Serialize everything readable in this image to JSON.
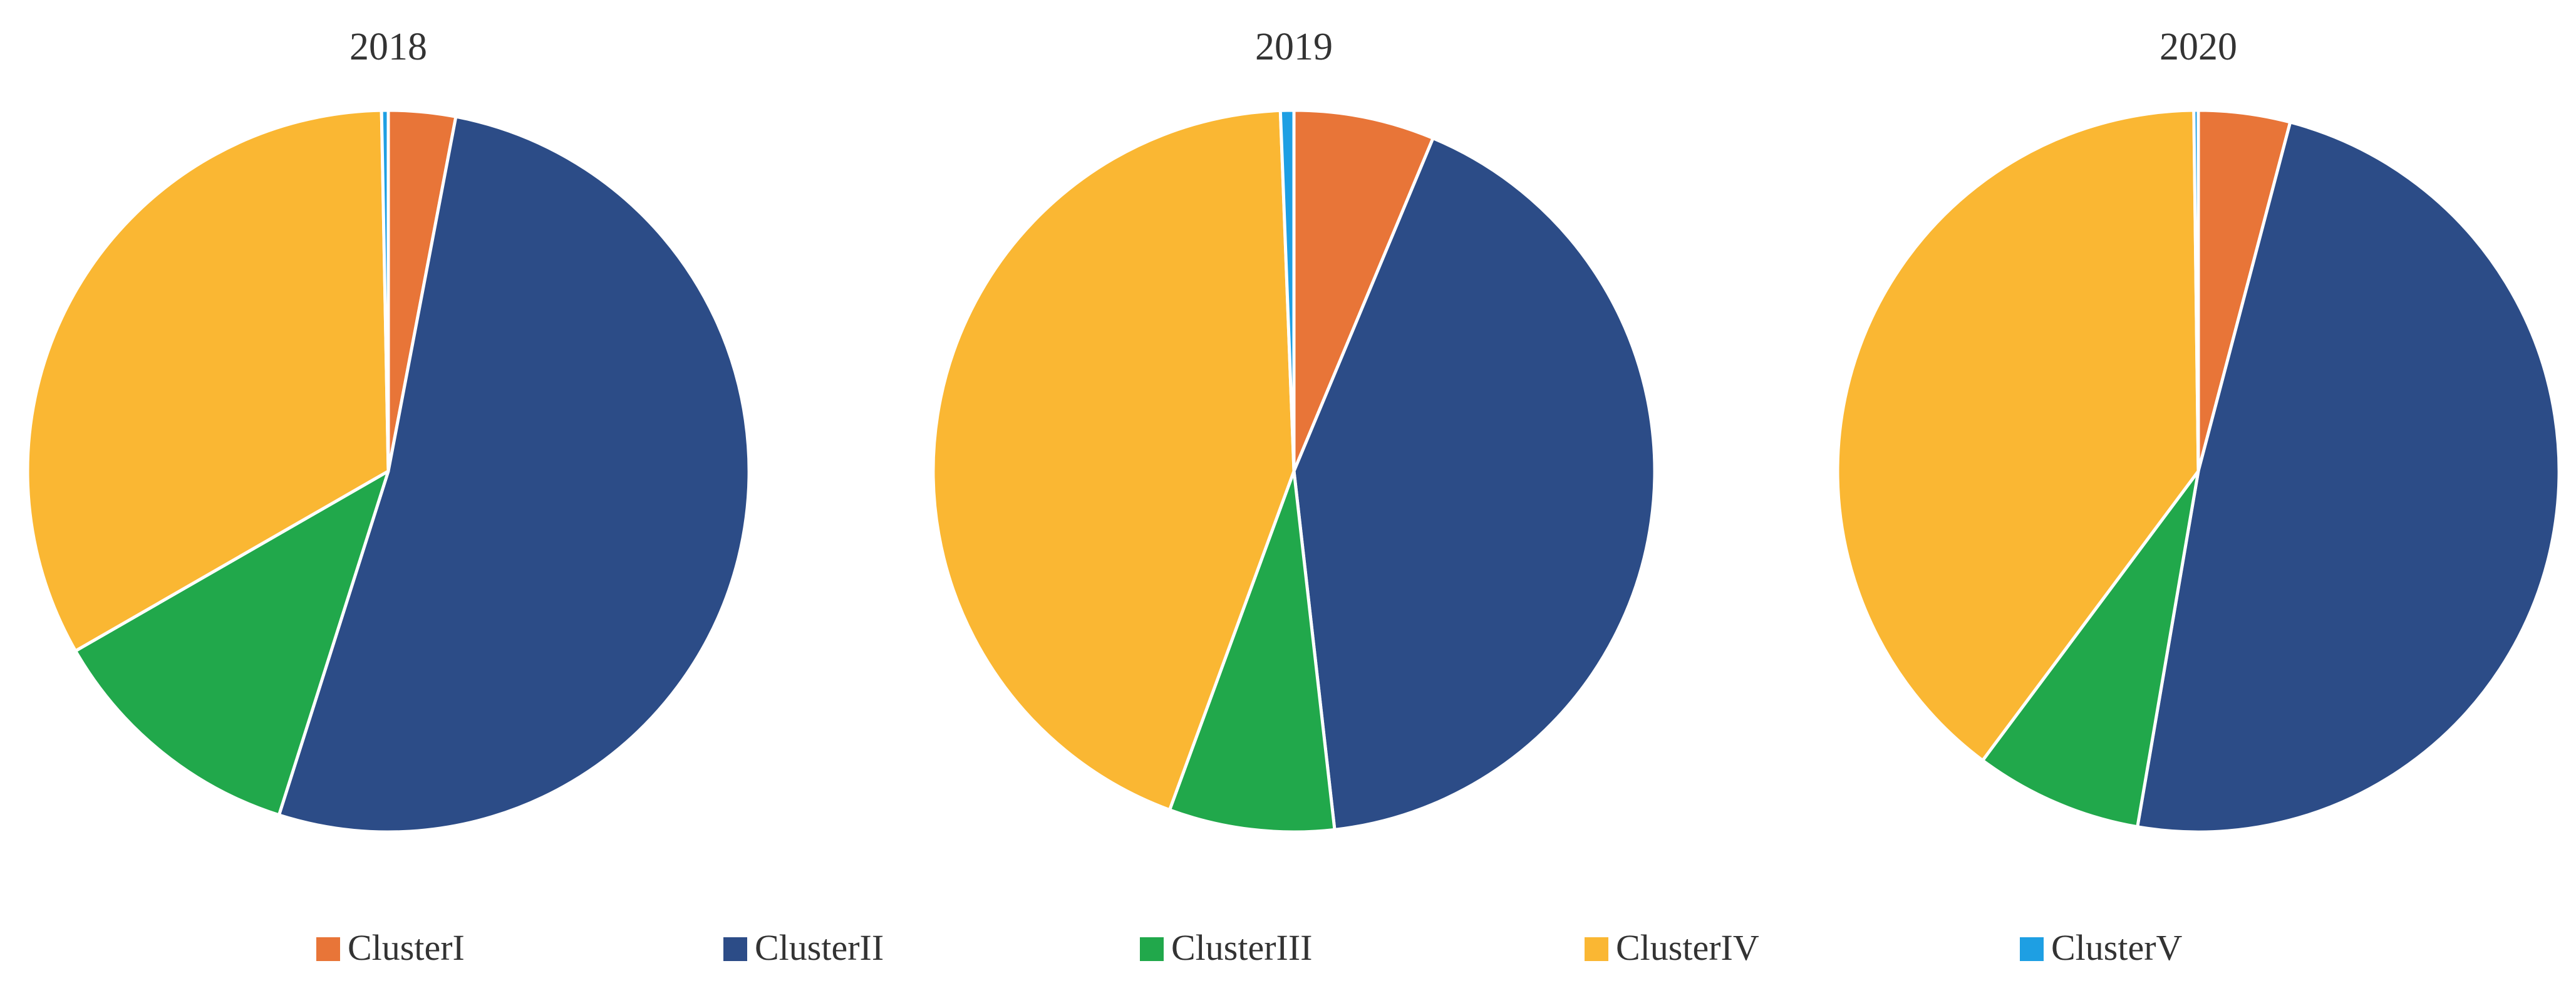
{
  "colors": {
    "ClusterI": "#E87538",
    "ClusterII": "#2C4C87",
    "ClusterIII": "#21A84B",
    "ClusterIV": "#FAB733",
    "ClusterV": "#1E9FE3",
    "slice_border": "#ffffff"
  },
  "legend": {
    "placement": "bottom",
    "items": [
      "ClusterI",
      "ClusterII",
      "ClusterIII",
      "ClusterIV",
      "ClusterV"
    ]
  },
  "chart_data": [
    {
      "type": "pie",
      "title": "2018",
      "categories": [
        "ClusterI",
        "ClusterII",
        "ClusterIII",
        "ClusterIV",
        "ClusterV"
      ],
      "values": [
        3.0,
        51.9,
        11.8,
        33.0,
        0.3
      ]
    },
    {
      "type": "pie",
      "title": "2019",
      "categories": [
        "ClusterI",
        "ClusterII",
        "ClusterIII",
        "ClusterIV",
        "ClusterV"
      ],
      "values": [
        6.3,
        41.9,
        7.4,
        43.8,
        0.6
      ]
    },
    {
      "type": "pie",
      "title": "2020",
      "categories": [
        "ClusterI",
        "ClusterII",
        "ClusterIII",
        "ClusterIV",
        "ClusterV"
      ],
      "values": [
        4.1,
        48.6,
        7.5,
        39.6,
        0.2
      ]
    }
  ]
}
